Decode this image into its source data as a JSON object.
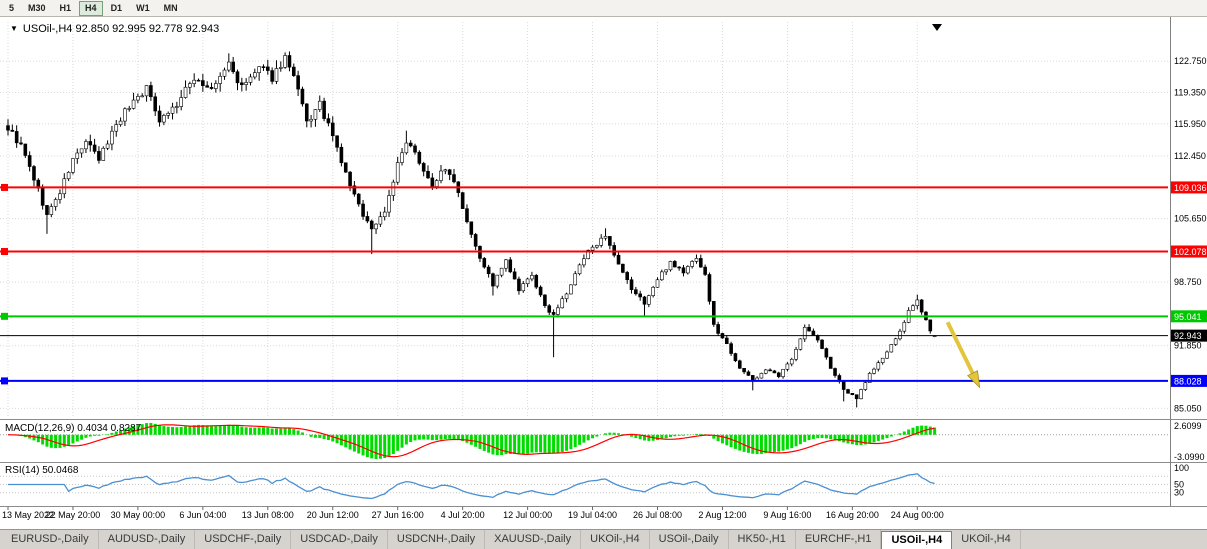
{
  "toolbar": {
    "timeframes": [
      "5",
      "M30",
      "H1",
      "H4",
      "D1",
      "W1",
      "MN"
    ],
    "active_timeframe": "H4"
  },
  "chart": {
    "title_marker": "▼",
    "title_line": "USOil-,H4 92.850 92.995 92.778 92.943",
    "shift_marker": "▼"
  },
  "chart_data": {
    "type": "candlestick",
    "symbol": "USOil-,H4",
    "timeframe": "H4",
    "title": "USOil-,H4 92.850 92.995 92.778 92.943",
    "last_ohlc": {
      "open": 92.85,
      "high": 92.995,
      "low": 92.778,
      "close": 92.943
    },
    "ylim": [
      84,
      127
    ],
    "n_candles": 215,
    "close_waypoints": [
      [
        0,
        115.5
      ],
      [
        3,
        113.5
      ],
      [
        6,
        110.0
      ],
      [
        9,
        106.0
      ],
      [
        12,
        108.5
      ],
      [
        15,
        112.0
      ],
      [
        18,
        114.0
      ],
      [
        21,
        112.0
      ],
      [
        25,
        116.0
      ],
      [
        29,
        118.5
      ],
      [
        32,
        119.8
      ],
      [
        35,
        116.5
      ],
      [
        39,
        118.0
      ],
      [
        43,
        121.0
      ],
      [
        47,
        119.5
      ],
      [
        51,
        122.5
      ],
      [
        54,
        119.8
      ],
      [
        58,
        122.0
      ],
      [
        61,
        121.0
      ],
      [
        64,
        123.2
      ],
      [
        67,
        119.5
      ],
      [
        69,
        116.0
      ],
      [
        72,
        118.0
      ],
      [
        75,
        114.5
      ],
      [
        78,
        110.5
      ],
      [
        81,
        107.0
      ],
      [
        84,
        104.5
      ],
      [
        87,
        106.5
      ],
      [
        90,
        111.5
      ],
      [
        92,
        113.8
      ],
      [
        95,
        112.0
      ],
      [
        98,
        109.0
      ],
      [
        100,
        111.0
      ],
      [
        103,
        110.0
      ],
      [
        106,
        105.5
      ],
      [
        109,
        101.5
      ],
      [
        112,
        98.5
      ],
      [
        115,
        101.0
      ],
      [
        118,
        97.8
      ],
      [
        121,
        99.5
      ],
      [
        124,
        96.0
      ],
      [
        126,
        95.3
      ],
      [
        129,
        97.5
      ],
      [
        132,
        100.5
      ],
      [
        135,
        102.8
      ],
      [
        138,
        103.5
      ],
      [
        141,
        100.5
      ],
      [
        144,
        98.0
      ],
      [
        147,
        96.5
      ],
      [
        150,
        99.0
      ],
      [
        153,
        101.0
      ],
      [
        156,
        99.8
      ],
      [
        159,
        101.5
      ],
      [
        161,
        99.5
      ],
      [
        163,
        94.0
      ],
      [
        166,
        92.0
      ],
      [
        169,
        89.5
      ],
      [
        172,
        88.0
      ],
      [
        175,
        89.3
      ],
      [
        178,
        88.5
      ],
      [
        181,
        90.5
      ],
      [
        184,
        93.8
      ],
      [
        187,
        92.5
      ],
      [
        190,
        89.5
      ],
      [
        193,
        87.0
      ],
      [
        196,
        86.2
      ],
      [
        199,
        88.8
      ],
      [
        202,
        90.5
      ],
      [
        205,
        92.5
      ],
      [
        208,
        95.5
      ],
      [
        210,
        96.6
      ],
      [
        212,
        94.8
      ],
      [
        213,
        93.4
      ],
      [
        214,
        92.94
      ]
    ],
    "wick_spikes": [
      [
        9,
        "low",
        104.0
      ],
      [
        51,
        "high",
        123.6
      ],
      [
        64,
        "high",
        123.7
      ],
      [
        84,
        "low",
        101.8
      ],
      [
        92,
        "high",
        115.2
      ],
      [
        112,
        "low",
        97.3
      ],
      [
        126,
        "low",
        90.6
      ],
      [
        138,
        "high",
        104.6
      ],
      [
        147,
        "low",
        95.1
      ],
      [
        172,
        "low",
        87.0
      ],
      [
        193,
        "low",
        85.8
      ],
      [
        196,
        "low",
        85.15
      ],
      [
        210,
        "high",
        97.4
      ]
    ],
    "price_axis_ticks": [
      {
        "label": "122.750",
        "value": 122.75
      },
      {
        "label": "119.350",
        "value": 119.35
      },
      {
        "label": "115.950",
        "value": 115.95
      },
      {
        "label": "112.450",
        "value": 112.45
      },
      {
        "label": "105.650",
        "value": 105.65
      },
      {
        "label": "98.750",
        "value": 98.75
      },
      {
        "label": "91.850",
        "value": 91.85
      },
      {
        "label": "85.050",
        "value": 85.05
      }
    ],
    "hlines": [
      {
        "label": "109.036",
        "value": 109.036,
        "color": "#FF0000",
        "width": 2,
        "marker": true
      },
      {
        "label": "102.078",
        "value": 102.078,
        "color": "#FF0000",
        "width": 2,
        "marker": true
      },
      {
        "label": "95.041",
        "value": 95.041,
        "color": "#00C800",
        "width": 2,
        "marker": true
      },
      {
        "label": "88.028",
        "value": 88.028,
        "color": "#0000FF",
        "width": 2,
        "marker": true
      },
      {
        "label": "92.943",
        "value": 92.943,
        "color": "#000000",
        "width": 1,
        "marker": false
      }
    ],
    "time_axis_labels": [
      "13 May 2022",
      "22 May 20:00",
      "30 May 00:00",
      "6 Jun 04:00",
      "13 Jun 08:00",
      "20 Jun 12:00",
      "27 Jun 16:00",
      "4 Jul 20:00",
      "12 Jul 00:00",
      "19 Jul 04:00",
      "26 Jul 08:00",
      "2 Aug 12:00",
      "9 Aug 16:00",
      "16 Aug 20:00",
      "24 Aug 00:00"
    ],
    "annotations": [
      {
        "type": "arrow-down-right",
        "color": "#E3C53D",
        "outline": "#A08A20",
        "i1": 217,
        "p1": 94.4,
        "i2": 224,
        "p2": 87.7
      }
    ],
    "indicators": {
      "macd": {
        "label": "MACD(12,26,9)",
        "value_main": "0.4034",
        "value_signal": "0.8287",
        "axis_labels": [
          "2.6099",
          "-3.0990"
        ],
        "color_main": "#00DC00",
        "color_signal": "#FF0000"
      },
      "rsi": {
        "label": "RSI(14)",
        "value": "50.0468",
        "axis_labels": [
          "100",
          "50",
          "30"
        ],
        "axis_values": [
          100,
          50,
          30
        ],
        "levels": [
          70,
          50,
          30
        ],
        "color": "#4A90D2"
      }
    }
  },
  "tabs": {
    "items": [
      "EURUSD-,Daily",
      "AUDUSD-,Daily",
      "USDCHF-,Daily",
      "USDCAD-,Daily",
      "USDCNH-,Daily",
      "XAUUSD-,Daily",
      "UKOil-,H4",
      "USOil-,Daily",
      "HK50-,H1",
      "EURCHF-,H1",
      "USOil-,H4",
      "UKOil-,H4"
    ],
    "active_index": 10
  },
  "colors": {
    "grid": "#DADADA",
    "candle_up_fill": "#FFFFFF",
    "candle_down_fill": "#000000",
    "candle_stroke": "#000000",
    "separator": "#8C8C8C",
    "axis_text": "#000000",
    "tabbar_bg": "#D6D3CE"
  }
}
